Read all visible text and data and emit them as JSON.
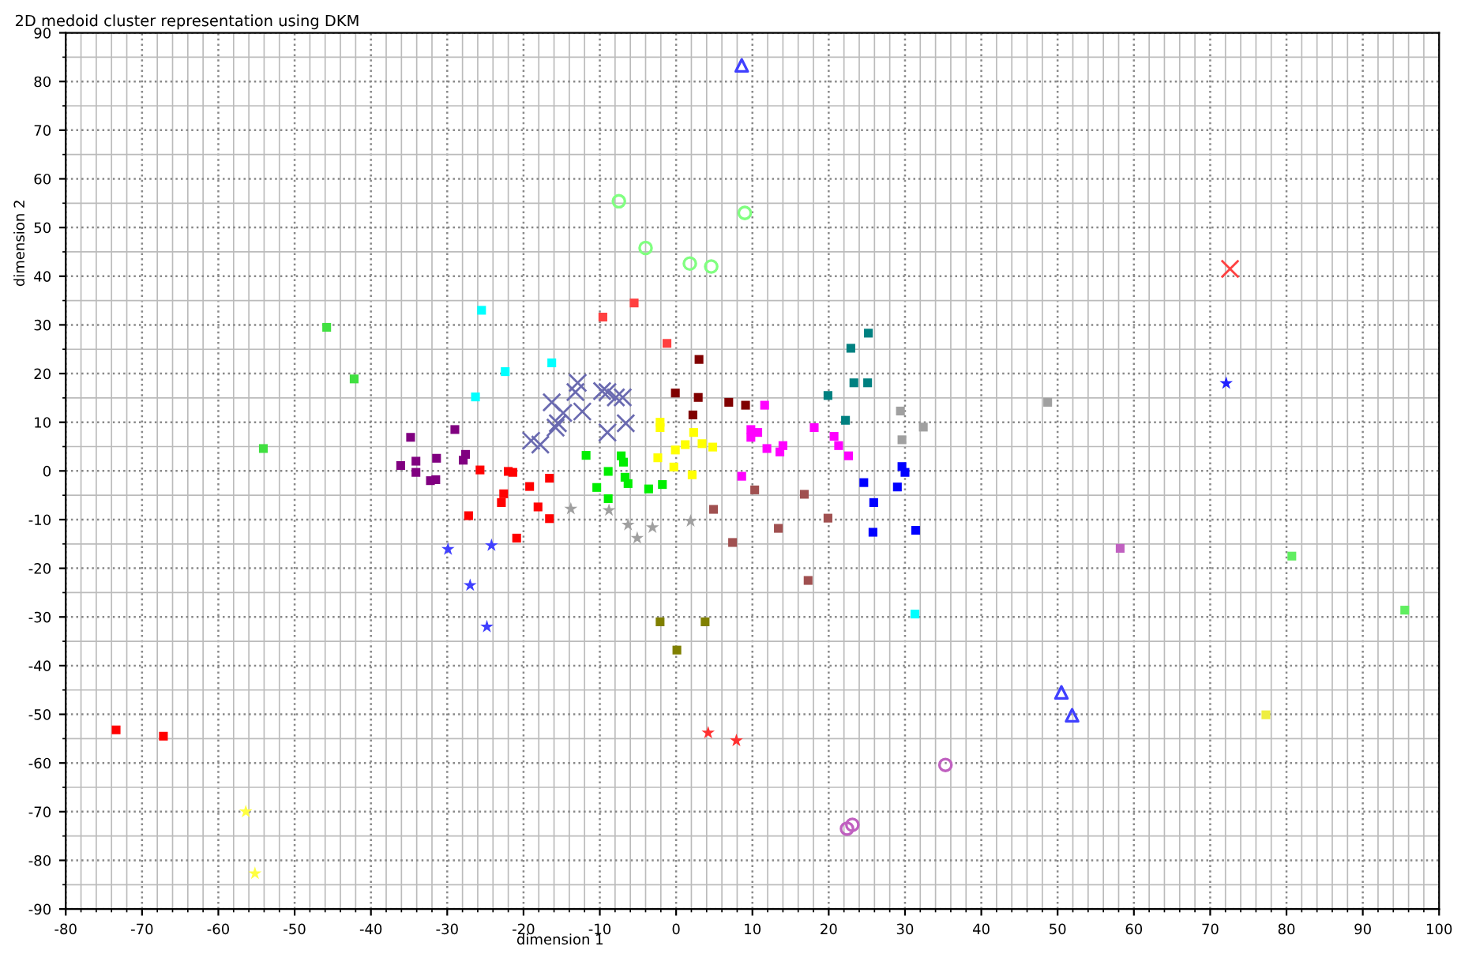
{
  "chart_data": {
    "type": "scatter",
    "title": "2D medoid cluster representation using DKM",
    "xlabel": "dimension 1",
    "ylabel": "dimension 2",
    "xlim": [
      -80,
      100
    ],
    "ylim": [
      -90,
      90
    ],
    "xticks": [
      -80,
      -70,
      -60,
      -50,
      -40,
      -30,
      -20,
      -10,
      0,
      10,
      20,
      30,
      40,
      50,
      60,
      70,
      80,
      90,
      100
    ],
    "yticks": [
      -90,
      -80,
      -70,
      -60,
      -50,
      -40,
      -30,
      -20,
      -10,
      0,
      10,
      20,
      30,
      40,
      50,
      60,
      70,
      80,
      90
    ],
    "grid": true,
    "legend": false,
    "series": [
      {
        "color": "#800080",
        "marker": "square",
        "x": [
          -34.8,
          -29.0,
          -36.1,
          -34.1,
          -34.1,
          -31.4,
          -32.2,
          -31.5,
          -27.6,
          -27.9
        ],
        "values": [
          6.9,
          8.5,
          1.1,
          2.0,
          -0.3,
          2.6,
          -2.0,
          -1.8,
          3.4,
          2.2
        ]
      },
      {
        "color": "#ff0000",
        "marker": "square",
        "x": [
          -25.7,
          -22.0,
          -21.4,
          -16.6,
          -19.2,
          -22.6,
          -22.9,
          -18.1,
          -27.2,
          -16.6,
          -20.9,
          -73.4,
          -67.2
        ],
        "values": [
          0.2,
          -0.1,
          -0.3,
          -1.5,
          -3.2,
          -4.7,
          -6.5,
          -7.4,
          -9.2,
          -9.8,
          -13.8,
          -53.2,
          -54.5
        ]
      },
      {
        "color": "#00ffff",
        "marker": "square",
        "x": [
          -25.5,
          -22.4,
          -26.3,
          -16.3,
          31.3
        ],
        "values": [
          33.0,
          20.4,
          15.2,
          22.2,
          -29.4
        ]
      },
      {
        "color": "#6a6ab0",
        "marker": "cross",
        "x": [
          -19.0,
          -17.8,
          -16.3,
          -14.8,
          -15.5,
          -15.8,
          -12.9,
          -13.2,
          -12.3,
          -9.7,
          -9.0,
          -7.9,
          -7.0,
          -6.6,
          -9.0
        ],
        "values": [
          6.2,
          5.4,
          14.1,
          11.9,
          9.8,
          8.9,
          18.1,
          16.2,
          12.2,
          16.4,
          16.2,
          15.1,
          15.1,
          9.8,
          7.9
        ]
      },
      {
        "color": "#00ee00",
        "marker": "square",
        "x": [
          -11.8,
          -7.2,
          -6.9,
          -8.9,
          -6.7,
          -6.3,
          -10.4,
          -8.9,
          -3.6,
          -1.8
        ],
        "values": [
          3.2,
          3.1,
          1.8,
          -0.1,
          -1.3,
          -2.6,
          -3.4,
          -5.7,
          -3.7,
          -2.8
        ]
      },
      {
        "color": "#a0a0a0",
        "marker": "star",
        "x": [
          -13.8,
          -8.8,
          -6.3,
          -5.1,
          -3.1,
          1.9
        ],
        "values": [
          -7.8,
          -8.1,
          -11.1,
          -13.8,
          -11.6,
          -10.3
        ]
      },
      {
        "color": "#ffff00",
        "marker": "square",
        "x": [
          -2.1,
          -2.1,
          2.3,
          -0.1,
          1.2,
          -2.4,
          -0.3,
          2.1,
          3.4,
          4.8
        ],
        "values": [
          10.0,
          8.9,
          7.9,
          4.3,
          5.4,
          2.7,
          0.8,
          -0.8,
          5.6,
          4.9
        ]
      },
      {
        "color": "#800000",
        "marker": "square",
        "x": [
          3.0,
          -0.1,
          2.9,
          6.9,
          9.1,
          2.2
        ],
        "values": [
          22.9,
          16.0,
          15.1,
          14.1,
          13.5,
          11.5
        ]
      },
      {
        "color": "#ff00ff",
        "marker": "square",
        "x": [
          11.6,
          9.8,
          10.7,
          9.8,
          11.9,
          14.0,
          13.6,
          8.6,
          18.1,
          20.7,
          21.3,
          22.6
        ],
        "values": [
          13.5,
          8.5,
          7.9,
          6.9,
          4.6,
          5.2,
          3.9,
          -1.1,
          8.9,
          7.1,
          5.2,
          3.1
        ]
      },
      {
        "color": "#008080",
        "marker": "square",
        "x": [
          25.2,
          22.9,
          23.3,
          25.1,
          19.9,
          22.2
        ],
        "values": [
          28.3,
          25.2,
          18.1,
          18.1,
          15.5,
          10.4
        ]
      },
      {
        "color": "#0000ff",
        "marker": "square",
        "x": [
          29.6,
          30.0,
          24.6,
          29.0,
          25.9,
          25.8,
          31.4
        ],
        "values": [
          0.9,
          -0.3,
          -2.4,
          -3.3,
          -6.5,
          -12.6,
          -12.2
        ]
      },
      {
        "color": "#a0a0a0",
        "marker": "square",
        "x": [
          29.4,
          32.4,
          29.6,
          48.7
        ],
        "values": [
          12.3,
          9.0,
          6.4,
          14.1
        ]
      },
      {
        "color": "#a05050",
        "marker": "square",
        "x": [
          10.3,
          4.9,
          16.8,
          19.9,
          13.4,
          7.4,
          17.3
        ],
        "values": [
          -3.9,
          -7.9,
          -4.8,
          -9.7,
          -11.8,
          -14.7,
          -22.5
        ]
      },
      {
        "color": "#ff4040",
        "marker": "square",
        "x": [
          -5.5,
          -9.6,
          -1.2
        ],
        "values": [
          34.5,
          31.6,
          26.2
        ]
      },
      {
        "color": "#4040ff",
        "marker": "star",
        "x": [
          -29.9,
          -24.2,
          -27.0,
          -24.8
        ],
        "values": [
          -16.1,
          -15.3,
          -23.5,
          -32.0
        ]
      },
      {
        "color": "#40e040",
        "marker": "square",
        "x": [
          -45.8,
          -42.2,
          -54.1
        ],
        "values": [
          29.5,
          18.9,
          4.6
        ]
      },
      {
        "color": "#80ff80",
        "marker": "circle",
        "x": [
          -7.5,
          -4.0,
          1.8,
          4.6,
          9.0
        ],
        "values": [
          55.4,
          45.8,
          42.6,
          42.0,
          53.0
        ]
      },
      {
        "color": "#4040ff",
        "marker": "triangle",
        "x": [
          8.6
        ],
        "values": [
          83.3
        ]
      },
      {
        "color": "#808000",
        "marker": "square",
        "x": [
          -2.1,
          3.8,
          0.1
        ],
        "values": [
          -31.0,
          -31.0,
          -36.8
        ]
      },
      {
        "color": "#ff3030",
        "marker": "star",
        "x": [
          4.2,
          7.9
        ],
        "values": [
          -53.8,
          -55.4
        ]
      },
      {
        "color": "#c060c0",
        "marker": "circle",
        "x": [
          35.3,
          22.4,
          23.1
        ],
        "values": [
          -60.4,
          -73.5,
          -72.7
        ]
      },
      {
        "color": "#ffff40",
        "marker": "star",
        "x": [
          -56.4,
          -55.2
        ],
        "values": [
          -70.0,
          -82.7
        ]
      },
      {
        "color": "#ff4040",
        "marker": "cross",
        "x": [
          72.6
        ],
        "values": [
          41.5
        ]
      },
      {
        "color": "#2020ff",
        "marker": "star",
        "x": [
          72.1
        ],
        "values": [
          18.0
        ]
      },
      {
        "color": "#c060c0",
        "marker": "square",
        "x": [
          58.2
        ],
        "values": [
          -15.9
        ]
      },
      {
        "color": "#60ee60",
        "marker": "square",
        "x": [
          80.7,
          95.5
        ],
        "values": [
          -17.5,
          -28.6
        ]
      },
      {
        "color": "#4040ff",
        "marker": "triangle",
        "x": [
          50.5,
          51.9
        ],
        "values": [
          -45.5,
          -50.2
        ]
      },
      {
        "color": "#eeee40",
        "marker": "square",
        "x": [
          77.3
        ],
        "values": [
          -50.1
        ]
      }
    ]
  }
}
